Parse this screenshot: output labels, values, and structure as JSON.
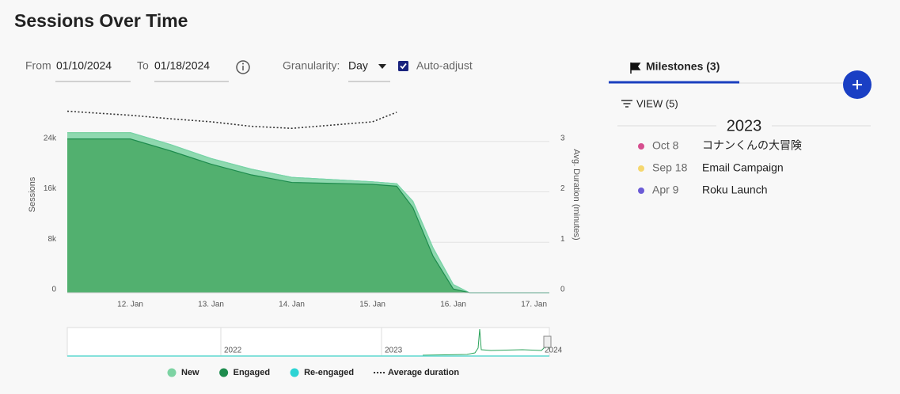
{
  "header": {
    "title": "Sessions Over Time"
  },
  "controls": {
    "from_label": "From",
    "from_value": "01/10/2024",
    "to_label": "To",
    "to_value": "01/18/2024",
    "granularity_label": "Granularity:",
    "granularity_value": "Day",
    "auto_adjust": "Auto-adjust"
  },
  "chart_data": {
    "type": "area",
    "x": [
      11.22,
      12.0,
      12.5,
      13.0,
      13.5,
      14.0,
      15.0,
      15.3,
      15.5,
      15.75,
      16.0,
      16.2,
      17.19
    ],
    "xlim": [
      11.22,
      17.19
    ],
    "xticks": [
      {
        "value": 12,
        "label": "12. Jan"
      },
      {
        "value": 13,
        "label": "13. Jan"
      },
      {
        "value": 14,
        "label": "14. Jan"
      },
      {
        "value": 15,
        "label": "15. Jan"
      },
      {
        "value": 16,
        "label": "16. Jan"
      },
      {
        "value": 17,
        "label": "17. Jan"
      }
    ],
    "ylim": [
      0,
      30000
    ],
    "yticks": [
      0,
      {
        "value": 8000,
        "label": "8k"
      },
      {
        "value": 16000,
        "label": "16k"
      },
      {
        "value": 24000,
        "label": "24k"
      }
    ],
    "y2lim": [
      0,
      3.75
    ],
    "y2ticks": [
      0,
      1,
      2,
      3
    ],
    "ylabel": "Sessions",
    "y2label": "Avg. Duration (minutes)",
    "grid": true,
    "stacked": true,
    "series": [
      {
        "name": "Engaged",
        "color": "#1e8c4e",
        "values": [
          24400,
          24400,
          22500,
          20400,
          18700,
          17500,
          17200,
          16900,
          13500,
          5800,
          600,
          0,
          0
        ]
      },
      {
        "name": "New",
        "color": "#7dd3a3",
        "values": [
          1000,
          1000,
          1000,
          900,
          900,
          800,
          400,
          400,
          1000,
          1300,
          700,
          0,
          0
        ]
      },
      {
        "name": "Re-engaged",
        "color": "#2dd4d4",
        "values": [
          0,
          0,
          0,
          0,
          0,
          0,
          0,
          0,
          0,
          0,
          0,
          0,
          0
        ]
      },
      {
        "name": "Average duration",
        "color": "#333333",
        "axis": "y2",
        "dashed": true,
        "values": [
          3.6,
          3.52,
          3.45,
          3.39,
          3.3,
          3.26,
          3.39,
          3.58,
          null,
          null,
          null,
          null,
          null
        ]
      }
    ],
    "legend_order": [
      1,
      0,
      2,
      3
    ],
    "navigator_labels": [
      "2022",
      "2023",
      "2024"
    ]
  },
  "milestones": {
    "tab": "Milestones (3)",
    "view": "VIEW (5)",
    "year": "2023",
    "items": [
      {
        "date": "Oct 8",
        "label": "コナンくんの大冒険",
        "color": "#d64f8f"
      },
      {
        "date": "Sep 18",
        "label": "Email Campaign",
        "color": "#f5d76e"
      },
      {
        "date": "Apr 9",
        "label": "Roku Launch",
        "color": "#6b5bd6"
      }
    ]
  }
}
